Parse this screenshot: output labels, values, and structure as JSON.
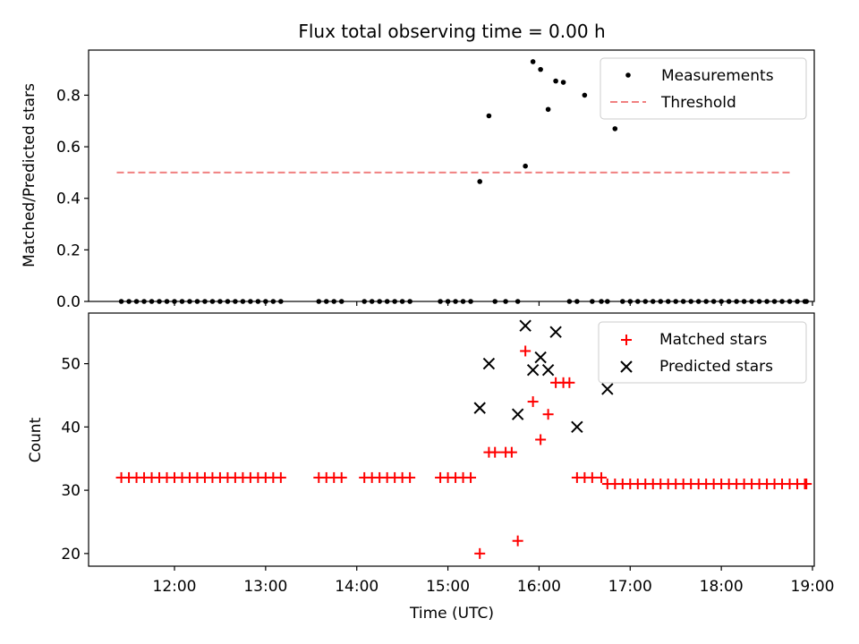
{
  "figure": {
    "title": "Flux total observing time = 0.00 h"
  },
  "chart_data": [
    {
      "type": "scatter",
      "panel": "top",
      "ylabel": "Matched/Predicted stars",
      "xlabel": "",
      "xlim": [
        "11:00",
        "19:00"
      ],
      "ylim": [
        0,
        0.975
      ],
      "yticks": [
        "0.0",
        "0.2",
        "0.4",
        "0.6",
        "0.8"
      ],
      "legend": {
        "placement": "top-right"
      },
      "series": [
        {
          "name": "Measurements",
          "marker": "dot",
          "color": "#000000",
          "x": [
            "11:25",
            "11:30",
            "11:35",
            "11:40",
            "11:45",
            "11:50",
            "11:55",
            "12:00",
            "12:05",
            "12:10",
            "12:15",
            "12:20",
            "12:25",
            "12:30",
            "12:35",
            "12:40",
            "12:45",
            "12:50",
            "12:55",
            "13:00",
            "13:05",
            "13:10",
            "13:35",
            "13:40",
            "13:45",
            "13:50",
            "14:05",
            "14:10",
            "14:15",
            "14:20",
            "14:25",
            "14:30",
            "14:35",
            "14:55",
            "15:00",
            "15:05",
            "15:10",
            "15:15",
            "15:21",
            "15:27",
            "15:31",
            "15:38",
            "15:46",
            "15:51",
            "15:56",
            "16:01",
            "16:06",
            "16:11",
            "16:16",
            "16:20",
            "16:25",
            "16:30",
            "16:35",
            "16:41",
            "16:45",
            "16:50",
            "16:55",
            "17:00",
            "17:05",
            "17:10",
            "17:15",
            "17:20",
            "17:25",
            "17:30",
            "17:35",
            "17:40",
            "17:45",
            "17:50",
            "17:55",
            "18:00",
            "18:05",
            "18:10",
            "18:15",
            "18:20",
            "18:25",
            "18:30",
            "18:35",
            "18:40",
            "18:45",
            "18:50",
            "18:55",
            "18:56"
          ],
          "y": [
            0,
            0,
            0,
            0,
            0,
            0,
            0,
            0,
            0,
            0,
            0,
            0,
            0,
            0,
            0,
            0,
            0,
            0,
            0,
            0,
            0,
            0,
            0,
            0,
            0,
            0,
            0,
            0,
            0,
            0,
            0,
            0,
            0,
            0,
            0,
            0,
            0,
            0,
            0.465,
            0.72,
            0,
            0,
            0,
            0.525,
            0.93,
            0.9,
            0.745,
            0.855,
            0.85,
            0,
            0,
            0.8,
            0,
            0,
            0,
            0.67,
            0,
            0,
            0,
            0,
            0,
            0,
            0,
            0,
            0,
            0,
            0,
            0,
            0,
            0,
            0,
            0,
            0,
            0,
            0,
            0,
            0,
            0,
            0,
            0,
            0,
            0
          ]
        },
        {
          "name": "Threshold",
          "marker": "dashed-line",
          "color": "#f08080",
          "x": [
            "11:22",
            "18:45"
          ],
          "y": [
            0.5,
            0.5
          ]
        }
      ]
    },
    {
      "type": "scatter",
      "panel": "bottom",
      "ylabel": "Count",
      "xlabel": "Time (UTC)",
      "xlim": [
        "11:00",
        "19:00"
      ],
      "ylim": [
        18,
        58
      ],
      "xticks": [
        "12:00",
        "13:00",
        "14:00",
        "15:00",
        "16:00",
        "17:00",
        "18:00",
        "19:00"
      ],
      "yticks": [
        "20",
        "30",
        "40",
        "50"
      ],
      "legend": {
        "placement": "top-right"
      },
      "series": [
        {
          "name": "Matched stars",
          "marker": "plus",
          "color": "#ff0000",
          "x": [
            "11:25",
            "11:30",
            "11:35",
            "11:40",
            "11:45",
            "11:50",
            "11:55",
            "12:00",
            "12:05",
            "12:10",
            "12:15",
            "12:20",
            "12:25",
            "12:30",
            "12:35",
            "12:40",
            "12:45",
            "12:50",
            "12:55",
            "13:00",
            "13:05",
            "13:10",
            "13:35",
            "13:40",
            "13:45",
            "13:50",
            "14:05",
            "14:10",
            "14:15",
            "14:20",
            "14:25",
            "14:30",
            "14:35",
            "14:55",
            "15:00",
            "15:05",
            "15:10",
            "15:15",
            "15:21",
            "15:27",
            "15:31",
            "15:38",
            "15:42",
            "15:46",
            "15:51",
            "15:56",
            "16:01",
            "16:06",
            "16:11",
            "16:16",
            "16:20",
            "16:25",
            "16:30",
            "16:35",
            "16:41",
            "16:45",
            "16:50",
            "16:55",
            "17:00",
            "17:05",
            "17:10",
            "17:15",
            "17:20",
            "17:25",
            "17:30",
            "17:35",
            "17:40",
            "17:45",
            "17:50",
            "17:55",
            "18:00",
            "18:05",
            "18:10",
            "18:15",
            "18:20",
            "18:25",
            "18:30",
            "18:35",
            "18:40",
            "18:45",
            "18:50",
            "18:55",
            "18:56"
          ],
          "y": [
            32,
            32,
            32,
            32,
            32,
            32,
            32,
            32,
            32,
            32,
            32,
            32,
            32,
            32,
            32,
            32,
            32,
            32,
            32,
            32,
            32,
            32,
            32,
            32,
            32,
            32,
            32,
            32,
            32,
            32,
            32,
            32,
            32,
            32,
            32,
            32,
            32,
            32,
            20,
            36,
            36,
            36,
            36,
            22,
            52,
            44,
            38,
            42,
            47,
            47,
            47,
            32,
            32,
            32,
            32,
            31,
            31,
            31,
            31,
            31,
            31,
            31,
            31,
            31,
            31,
            31,
            31,
            31,
            31,
            31,
            31,
            31,
            31,
            31,
            31,
            31,
            31,
            31,
            31,
            31,
            31,
            31,
            31
          ]
        },
        {
          "name": "Predicted stars",
          "marker": "x",
          "color": "#000000",
          "x": [
            "15:21",
            "15:27",
            "15:46",
            "15:51",
            "15:56",
            "16:01",
            "16:06",
            "16:11",
            "16:25",
            "16:45"
          ],
          "y": [
            43,
            50,
            42,
            56,
            49,
            51,
            49,
            55,
            40,
            46
          ]
        }
      ]
    }
  ]
}
